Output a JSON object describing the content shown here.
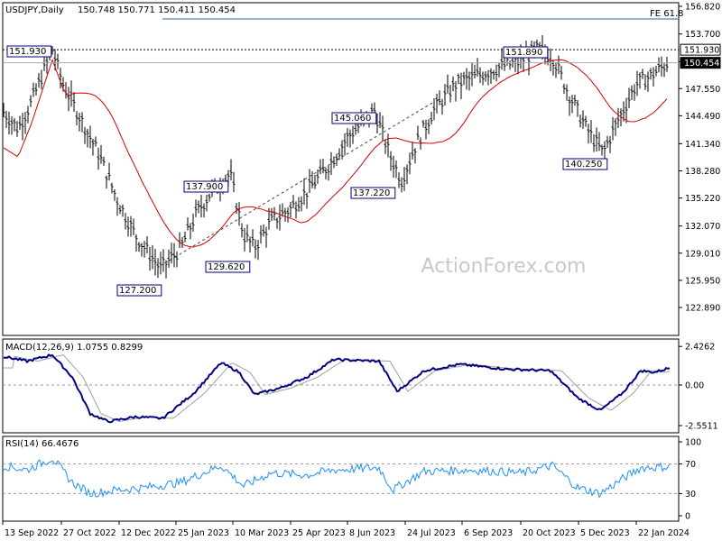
{
  "header": {
    "symbol": "USDJPY,Daily",
    "ohlc": "150.748 150.771 150.411 150.454"
  },
  "watermark": "ActionForex.com",
  "chart_data": [
    {
      "type": "candlestick",
      "panel": "price",
      "y_ticks": [
        "156.820",
        "153.700",
        "150.580",
        "147.550",
        "144.490",
        "141.340",
        "138.280",
        "135.220",
        "132.070",
        "129.010",
        "125.950",
        "122.890"
      ],
      "ylim": [
        122.89,
        156.82
      ],
      "x_ticks": [
        "13 Sep 2022",
        "27 Oct 2022",
        "12 Dec 2022",
        "25 Jan 2023",
        "10 Mar 2023",
        "25 Apr 2023",
        "8 Jun 2023",
        "24 Jul 2023",
        "6 Sep 2023",
        "20 Oct 2023",
        "5 Dec 2023",
        "22 Jan 2024"
      ],
      "fib_label": "FE 61.8",
      "fib_level": 155.4,
      "resistance_level": 151.93,
      "current_price": 150.454,
      "price_tags": [
        "151.930",
        "150.454"
      ],
      "annotations": [
        {
          "label": "151.930",
          "value": 151.93
        },
        {
          "label": "127.200",
          "value": 127.2
        },
        {
          "label": "137.900",
          "value": 137.9
        },
        {
          "label": "129.620",
          "value": 129.62
        },
        {
          "label": "145.060",
          "value": 145.06
        },
        {
          "label": "137.220",
          "value": 137.22
        },
        {
          "label": "151.890",
          "value": 151.89
        },
        {
          "label": "140.250",
          "value": 140.25
        }
      ],
      "moving_average_color": "#d40000",
      "bar_color": "#000000"
    },
    {
      "type": "line",
      "panel": "macd",
      "title": "MACD(12,26,9) 1.0755 0.8299",
      "y_ticks": [
        "2.4262",
        "0.00",
        "-2.5511"
      ],
      "ylim": [
        -2.5511,
        2.4262
      ],
      "series": [
        {
          "name": "MACD",
          "color": "#00007f"
        },
        {
          "name": "Signal",
          "color": "#a0a0a0"
        }
      ]
    },
    {
      "type": "line",
      "panel": "rsi",
      "title": "RSI(14) 66.4676",
      "y_ticks": [
        "100",
        "70",
        "30",
        "0"
      ],
      "ylim": [
        0,
        100
      ],
      "levels": [
        70,
        30
      ],
      "series": [
        {
          "name": "RSI",
          "color": "#1e90ff"
        }
      ]
    }
  ]
}
